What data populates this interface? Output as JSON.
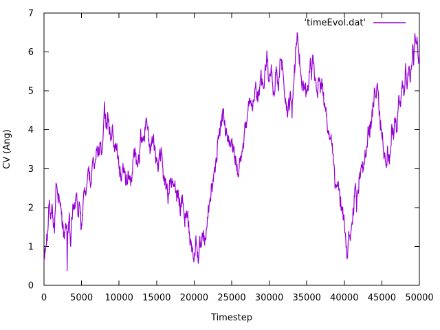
{
  "chart_data": {
    "type": "line",
    "title": "",
    "xlabel": "Timestep",
    "ylabel": "CV (Ang)",
    "xlim": [
      0,
      50000
    ],
    "ylim": [
      0,
      7
    ],
    "grid": false,
    "x_ticks": [
      0,
      5000,
      10000,
      15000,
      20000,
      25000,
      30000,
      35000,
      40000,
      45000,
      50000
    ],
    "x_tick_labels": [
      "0",
      "5000",
      "10000",
      "15000",
      "20000",
      "25000",
      "30000",
      "35000",
      "40000",
      "45000",
      "50000"
    ],
    "y_ticks": [
      0,
      1,
      2,
      3,
      4,
      5,
      6,
      7
    ],
    "y_tick_labels": [
      "0",
      "1",
      "2",
      "3",
      "4",
      "5",
      "6",
      "7"
    ],
    "axis_color": "#000000",
    "background_color": "#ffffff",
    "legend": {
      "position": "top-right-inside",
      "entries": [
        {
          "label": "'timeEvol.dat'",
          "color": "#9400d3"
        }
      ]
    },
    "series": [
      {
        "name": "'timeEvol.dat'",
        "color": "#9400d3",
        "keypoints": [
          [
            0,
            0.63
          ],
          [
            300,
            1.2
          ],
          [
            500,
            1.56
          ],
          [
            700,
            2.15
          ],
          [
            900,
            1.8
          ],
          [
            1100,
            2.0
          ],
          [
            1370,
            1.37
          ],
          [
            1600,
            2.6
          ],
          [
            1900,
            2.1
          ],
          [
            2100,
            2.3
          ],
          [
            2400,
            1.7
          ],
          [
            2700,
            1.35
          ],
          [
            2900,
            1.7
          ],
          [
            3040,
            1.5
          ],
          [
            3090,
            0.21
          ],
          [
            3140,
            1.3
          ],
          [
            3250,
            1.4
          ],
          [
            3400,
            1.56
          ],
          [
            3550,
            1.1
          ],
          [
            3700,
            1.75
          ],
          [
            3910,
            2.15
          ],
          [
            4100,
            1.9
          ],
          [
            4300,
            2.3
          ],
          [
            4500,
            1.85
          ],
          [
            4700,
            2.2
          ],
          [
            4950,
            1.56
          ],
          [
            5100,
            1.9
          ],
          [
            5300,
            2.2
          ],
          [
            5590,
            2.45
          ],
          [
            5860,
            2.8
          ],
          [
            6200,
            2.6
          ],
          [
            6500,
            3.2
          ],
          [
            6700,
            3.0
          ],
          [
            6960,
            3.3
          ],
          [
            7200,
            3.45
          ],
          [
            7420,
            3.6
          ],
          [
            7690,
            3.5
          ],
          [
            7900,
            4.2
          ],
          [
            8060,
            4.75
          ],
          [
            8240,
            4.1
          ],
          [
            8520,
            4.33
          ],
          [
            8790,
            3.9
          ],
          [
            9070,
            3.9
          ],
          [
            9430,
            3.5
          ],
          [
            9700,
            3.39
          ],
          [
            9980,
            3.1
          ],
          [
            10350,
            2.9
          ],
          [
            10620,
            3.04
          ],
          [
            10900,
            2.8
          ],
          [
            11260,
            2.97
          ],
          [
            11540,
            2.74
          ],
          [
            11810,
            3.09
          ],
          [
            12000,
            3.62
          ],
          [
            12270,
            3.33
          ],
          [
            12500,
            3.21
          ],
          [
            12730,
            3.45
          ],
          [
            12910,
            3.86
          ],
          [
            13190,
            3.56
          ],
          [
            13460,
            4.1
          ],
          [
            13650,
            4.17
          ],
          [
            13900,
            3.9
          ],
          [
            14100,
            3.62
          ],
          [
            14560,
            3.86
          ],
          [
            14850,
            3.4
          ],
          [
            15200,
            3.09
          ],
          [
            15660,
            3.5
          ],
          [
            16120,
            2.62
          ],
          [
            16580,
            2.39
          ],
          [
            17040,
            2.74
          ],
          [
            17500,
            2.26
          ],
          [
            17770,
            2.5
          ],
          [
            18130,
            2.03
          ],
          [
            18400,
            2.26
          ],
          [
            18680,
            1.74
          ],
          [
            19050,
            1.91
          ],
          [
            19320,
            1.44
          ],
          [
            19600,
            1.27
          ],
          [
            19960,
            0.74
          ],
          [
            20240,
            1.15
          ],
          [
            20500,
            0.83
          ],
          [
            20870,
            1.03
          ],
          [
            21140,
            1.44
          ],
          [
            21420,
            1.27
          ],
          [
            21780,
            1.74
          ],
          [
            22050,
            2.03
          ],
          [
            22330,
            2.5
          ],
          [
            22700,
            2.85
          ],
          [
            22970,
            3.33
          ],
          [
            23240,
            3.86
          ],
          [
            23600,
            4.21
          ],
          [
            23800,
            4.52
          ],
          [
            24070,
            4.15
          ],
          [
            24350,
            3.92
          ],
          [
            24620,
            3.62
          ],
          [
            25000,
            3.8
          ],
          [
            25300,
            3.5
          ],
          [
            25600,
            3.1
          ],
          [
            25900,
            2.75
          ],
          [
            26200,
            3.3
          ],
          [
            26500,
            3.7
          ],
          [
            26900,
            4.1
          ],
          [
            27100,
            4.4
          ],
          [
            27400,
            4.86
          ],
          [
            27740,
            4.51
          ],
          [
            28200,
            5.16
          ],
          [
            28470,
            4.74
          ],
          [
            28930,
            5.34
          ],
          [
            29200,
            4.98
          ],
          [
            29670,
            5.83
          ],
          [
            30040,
            5.27
          ],
          [
            30300,
            5.51
          ],
          [
            30600,
            5.1
          ],
          [
            30940,
            5.39
          ],
          [
            31200,
            5.1
          ],
          [
            31500,
            5.92
          ],
          [
            31850,
            5.45
          ],
          [
            32120,
            4.8
          ],
          [
            32400,
            4.51
          ],
          [
            32760,
            4.74
          ],
          [
            33030,
            4.51
          ],
          [
            33200,
            5.04
          ],
          [
            33500,
            5.92
          ],
          [
            33720,
            6.55
          ],
          [
            33980,
            6.04
          ],
          [
            34170,
            5.45
          ],
          [
            34440,
            5.1
          ],
          [
            34720,
            5.27
          ],
          [
            34900,
            4.92
          ],
          [
            35170,
            5.16
          ],
          [
            35530,
            5.92
          ],
          [
            35640,
            5.63
          ],
          [
            35800,
            5.86
          ],
          [
            36100,
            5.34
          ],
          [
            36440,
            4.98
          ],
          [
            36560,
            5.21
          ],
          [
            36900,
            4.92
          ],
          [
            37000,
            5.16
          ],
          [
            37350,
            4.68
          ],
          [
            37630,
            4.27
          ],
          [
            37900,
            3.97
          ],
          [
            38270,
            3.74
          ],
          [
            38500,
            3.3
          ],
          [
            38740,
            2.7
          ],
          [
            39000,
            2.6
          ],
          [
            39300,
            2.45
          ],
          [
            39660,
            2.0
          ],
          [
            40000,
            1.6
          ],
          [
            40200,
            1.2
          ],
          [
            40480,
            0.85
          ],
          [
            40660,
            1.2
          ],
          [
            41030,
            1.68
          ],
          [
            41250,
            1.89
          ],
          [
            41490,
            2.56
          ],
          [
            41650,
            2.15
          ],
          [
            41940,
            2.74
          ],
          [
            42200,
            3.0
          ],
          [
            42500,
            2.9
          ],
          [
            42800,
            3.4
          ],
          [
            43100,
            3.7
          ],
          [
            43400,
            4.0
          ],
          [
            43730,
            4.5
          ],
          [
            44040,
            4.92
          ],
          [
            44190,
            4.63
          ],
          [
            44430,
            5.15
          ],
          [
            44740,
            4.33
          ],
          [
            44950,
            4.04
          ],
          [
            45160,
            3.68
          ],
          [
            45400,
            3.39
          ],
          [
            45650,
            3.18
          ],
          [
            45890,
            3.5
          ],
          [
            46040,
            3.27
          ],
          [
            46350,
            3.98
          ],
          [
            46560,
            3.74
          ],
          [
            46800,
            4.45
          ],
          [
            47020,
            4.15
          ],
          [
            47260,
            4.92
          ],
          [
            47510,
            4.57
          ],
          [
            47720,
            5.33
          ],
          [
            47930,
            4.86
          ],
          [
            48180,
            5.57
          ],
          [
            48420,
            5.16
          ],
          [
            48640,
            5.69
          ],
          [
            48790,
            5.27
          ],
          [
            49100,
            6.28
          ],
          [
            49250,
            5.98
          ],
          [
            49400,
            6.6
          ],
          [
            49580,
            6.22
          ],
          [
            49700,
            6.33
          ],
          [
            49850,
            5.8
          ],
          [
            50000,
            5.9
          ]
        ]
      }
    ],
    "noise": {
      "step": 40,
      "rho": 0.55,
      "sigma": 0.1,
      "impulse": 0.05,
      "seed": 1337
    }
  }
}
